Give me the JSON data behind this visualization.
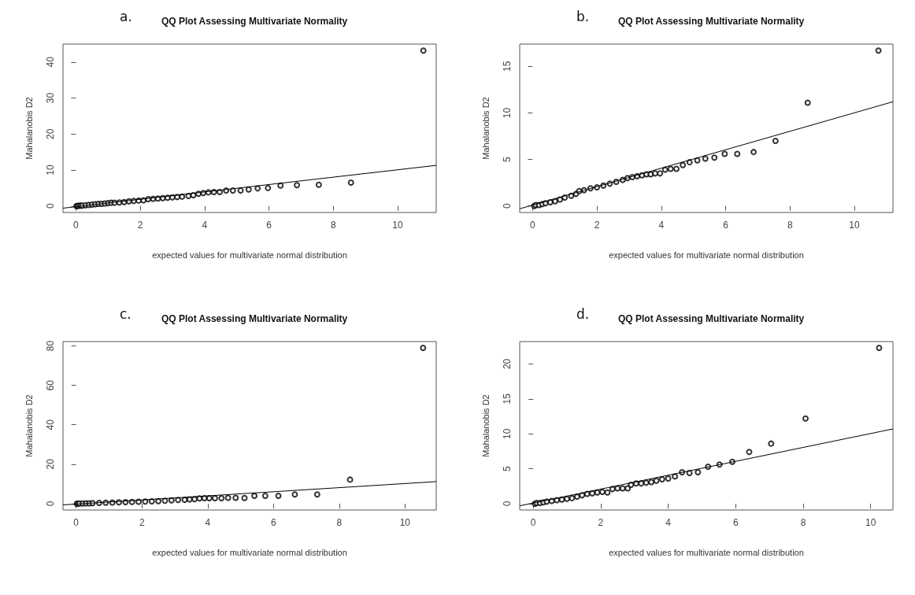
{
  "chart_data": [
    {
      "type": "scatter",
      "title": "QQ Plot Assessing Multivariate Normality",
      "annotations": [
        "a."
      ],
      "xlabel": "expected values for multivariate normal distribution",
      "ylabel": "Mahalanobis D2",
      "xlim": [
        -0.4,
        11.2
      ],
      "ylim": [
        -1.8,
        45
      ],
      "xticks": [
        0,
        2,
        4,
        6,
        8,
        10
      ],
      "yticks": [
        0,
        10,
        20,
        30,
        40
      ],
      "series": [
        {
          "color": "#000000",
          "x": [
            0.02,
            0.05,
            0.1,
            0.15,
            0.2,
            0.3,
            0.4,
            0.5,
            0.6,
            0.7,
            0.8,
            0.9,
            1.0,
            1.1,
            1.2,
            1.35,
            1.5,
            1.65,
            1.8,
            1.95,
            2.1,
            2.25,
            2.4,
            2.55,
            2.7,
            2.85,
            3.0,
            3.15,
            3.3,
            3.5,
            3.65,
            3.81,
            3.96,
            4.12,
            4.29,
            4.47,
            4.67,
            4.88,
            5.12,
            5.37,
            5.65,
            5.97,
            6.36,
            6.87,
            7.55,
            8.55,
            10.8
          ],
          "marker": "circle",
          "values": [
            0,
            0,
            0.1,
            0.1,
            0.1,
            0.2,
            0.3,
            0.4,
            0.5,
            0.6,
            0.6,
            0.7,
            0.8,
            0.9,
            0.9,
            1.0,
            1.1,
            1.3,
            1.4,
            1.5,
            1.6,
            1.9,
            2.0,
            2.1,
            2.2,
            2.3,
            2.4,
            2.5,
            2.6,
            2.8,
            3.0,
            3.4,
            3.6,
            3.8,
            3.9,
            3.9,
            4.3,
            4.3,
            4.3,
            4.6,
            4.9,
            5.0,
            5.7,
            5.8,
            5.9,
            6.5,
            43.2
          ]
        },
        {
          "type": "line",
          "color": "#000000",
          "x": [
            -0.4,
            11.2
          ],
          "values": [
            -0.6,
            11.3
          ]
        }
      ]
    },
    {
      "type": "scatter",
      "title": "QQ Plot Assessing Multivariate Normality",
      "annotations": [
        "b."
      ],
      "xlabel": "expected values for multivariate normal distribution",
      "ylabel": "Mahalanobis D2",
      "xlim": [
        -0.4,
        11.2
      ],
      "ylim": [
        -0.7,
        17.4
      ],
      "xticks": [
        0,
        2,
        4,
        6,
        8,
        10
      ],
      "yticks": [
        0,
        5,
        10,
        15
      ],
      "series": [
        {
          "color": "#000000",
          "x": [
            0.05,
            0.1,
            0.2,
            0.3,
            0.4,
            0.55,
            0.7,
            0.85,
            1.0,
            1.2,
            1.35,
            1.45,
            1.6,
            1.8,
            2.0,
            2.2,
            2.4,
            2.6,
            2.8,
            2.95,
            3.1,
            3.25,
            3.4,
            3.54,
            3.67,
            3.81,
            3.96,
            4.12,
            4.29,
            4.47,
            4.67,
            4.88,
            5.12,
            5.37,
            5.65,
            5.97,
            6.36,
            6.87,
            7.55,
            8.55,
            10.75
          ],
          "marker": "circle",
          "values": [
            0,
            0.1,
            0.1,
            0.2,
            0.3,
            0.4,
            0.5,
            0.7,
            0.9,
            1.1,
            1.3,
            1.6,
            1.7,
            1.9,
            2.0,
            2.2,
            2.4,
            2.6,
            2.8,
            3.0,
            3.1,
            3.2,
            3.3,
            3.4,
            3.4,
            3.5,
            3.5,
            3.9,
            4.0,
            4.0,
            4.4,
            4.7,
            4.9,
            5.1,
            5.2,
            5.6,
            5.6,
            5.8,
            7.0,
            11.1,
            16.7
          ]
        },
        {
          "type": "line",
          "color": "#000000",
          "x": [
            -0.4,
            11.2
          ],
          "values": [
            -0.3,
            11.2
          ]
        }
      ]
    },
    {
      "type": "scatter",
      "title": "QQ Plot Assessing Multivariate Normality",
      "annotations": [
        "c."
      ],
      "xlabel": "expected values for multivariate normal distribution",
      "ylabel": "Mahalanobis D2",
      "xlim": [
        -0.4,
        10.95
      ],
      "ylim": [
        -3.2,
        82.2
      ],
      "xticks": [
        0,
        2,
        4,
        6,
        8,
        10
      ],
      "yticks": [
        0,
        20,
        40,
        60,
        80
      ],
      "series": [
        {
          "color": "#000000",
          "x": [
            0.02,
            0.05,
            0.1,
            0.2,
            0.3,
            0.4,
            0.5,
            0.7,
            0.9,
            1.1,
            1.3,
            1.5,
            1.7,
            1.9,
            2.1,
            2.3,
            2.5,
            2.7,
            2.9,
            3.1,
            3.3,
            3.45,
            3.6,
            3.75,
            3.9,
            4.05,
            4.22,
            4.42,
            4.62,
            4.85,
            5.12,
            5.42,
            5.75,
            6.15,
            6.65,
            7.33,
            8.33,
            10.55
          ],
          "marker": "circle",
          "values": [
            0,
            0,
            0.1,
            0.1,
            0.2,
            0.2,
            0.3,
            0.4,
            0.5,
            0.6,
            0.7,
            0.8,
            0.9,
            1.0,
            1.1,
            1.2,
            1.3,
            1.5,
            1.7,
            1.9,
            2.0,
            2.2,
            2.3,
            2.7,
            2.8,
            2.8,
            2.8,
            2.8,
            3.0,
            3.0,
            2.9,
            4.0,
            4.0,
            4.0,
            4.7,
            4.7,
            12.2,
            79
          ]
        },
        {
          "type": "line",
          "color": "#000000",
          "x": [
            -0.4,
            10.95
          ],
          "values": [
            -0.6,
            11.2
          ]
        }
      ]
    },
    {
      "type": "scatter",
      "title": "QQ Plot Assessing Multivariate Normality",
      "annotations": [
        "d."
      ],
      "xlabel": "expected values for multivariate normal distribution",
      "ylabel": "Mahalanobis D2",
      "xlim": [
        -0.4,
        10.66
      ],
      "ylim": [
        -0.9,
        23.2
      ],
      "xticks": [
        0,
        2,
        4,
        6,
        8,
        10
      ],
      "yticks": [
        0,
        5,
        10,
        15,
        20
      ],
      "series": [
        {
          "color": "#000000",
          "x": [
            0.05,
            0.1,
            0.2,
            0.3,
            0.4,
            0.55,
            0.7,
            0.85,
            1.0,
            1.15,
            1.3,
            1.45,
            1.6,
            1.75,
            1.9,
            2.05,
            2.2,
            2.35,
            2.5,
            2.65,
            2.8,
            2.9,
            3.05,
            3.2,
            3.35,
            3.5,
            3.65,
            3.82,
            4.0,
            4.2,
            4.41,
            4.63,
            4.88,
            5.18,
            5.52,
            5.9,
            6.4,
            7.05,
            8.07,
            10.25
          ],
          "marker": "circle",
          "values": [
            0,
            0.1,
            0.1,
            0.2,
            0.3,
            0.4,
            0.5,
            0.6,
            0.7,
            0.8,
            1.0,
            1.2,
            1.4,
            1.5,
            1.6,
            1.7,
            1.6,
            2.1,
            2.2,
            2.2,
            2.2,
            2.7,
            2.9,
            2.9,
            3.0,
            3.1,
            3.3,
            3.5,
            3.6,
            3.9,
            4.5,
            4.4,
            4.5,
            5.3,
            5.6,
            6.0,
            7.4,
            8.6,
            12.2,
            22.3
          ]
        },
        {
          "type": "line",
          "color": "#000000",
          "x": [
            -0.4,
            10.66
          ],
          "values": [
            -0.3,
            10.7
          ]
        }
      ]
    }
  ]
}
